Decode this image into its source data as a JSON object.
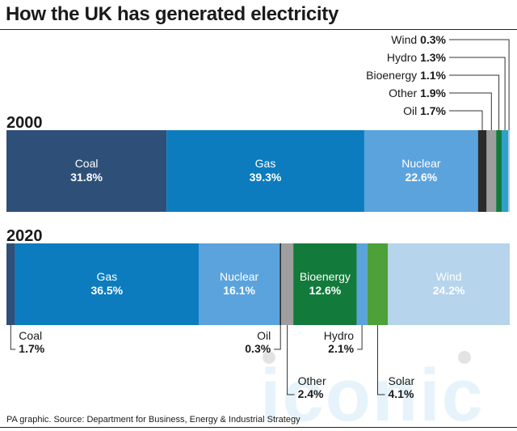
{
  "title": "How the UK has generated electricity",
  "source": "PA graphic. Source: Department for Business, Energy & Industrial Strategy",
  "watermark": "iconic",
  "chart_data": [
    {
      "type": "bar",
      "stacked": "horizontal-100%",
      "year": "2000",
      "segments": [
        {
          "name": "Coal",
          "value": 31.8,
          "label": "31.8%",
          "color": "#2e5078"
        },
        {
          "name": "Gas",
          "value": 39.3,
          "label": "39.3%",
          "color": "#0c7cbf"
        },
        {
          "name": "Nuclear",
          "value": 22.6,
          "label": "22.6%",
          "color": "#5ba3dc"
        },
        {
          "name": "Oil",
          "value": 1.7,
          "label": "1.7%",
          "color": "#2b2b2b"
        },
        {
          "name": "Other",
          "value": 1.9,
          "label": "1.9%",
          "color": "#9e9e9e"
        },
        {
          "name": "Bioenergy",
          "value": 1.1,
          "label": "1.1%",
          "color": "#127a3b"
        },
        {
          "name": "Hydro",
          "value": 1.3,
          "label": "1.3%",
          "color": "#2fa0c8"
        },
        {
          "name": "Wind",
          "value": 0.3,
          "label": "0.3%",
          "color": "#a8cdea"
        }
      ]
    },
    {
      "type": "bar",
      "stacked": "horizontal-100%",
      "year": "2020",
      "segments": [
        {
          "name": "Coal",
          "value": 1.7,
          "label": "1.7%",
          "color": "#2e5078"
        },
        {
          "name": "Gas",
          "value": 36.5,
          "label": "36.5%",
          "color": "#0c7cbf"
        },
        {
          "name": "Nuclear",
          "value": 16.1,
          "label": "16.1%",
          "color": "#5ba3dc"
        },
        {
          "name": "Oil",
          "value": 0.3,
          "label": "0.3%",
          "color": "#2b2b2b"
        },
        {
          "name": "Other",
          "value": 2.4,
          "label": "2.4%",
          "color": "#9e9e9e"
        },
        {
          "name": "Bioenergy",
          "value": 12.6,
          "label": "12.6%",
          "color": "#127a3b"
        },
        {
          "name": "Hydro",
          "value": 2.1,
          "label": "2.1%",
          "color": "#5ba3dc"
        },
        {
          "name": "Solar",
          "value": 4.1,
          "label": "4.1%",
          "color": "#4ea038"
        },
        {
          "name": "Wind",
          "value": 24.2,
          "label": "24.2%",
          "color": "#b6d4ec"
        }
      ]
    }
  ]
}
